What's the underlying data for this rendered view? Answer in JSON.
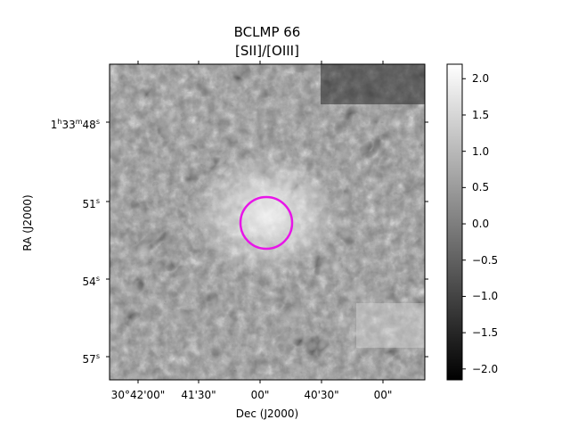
{
  "figure": {
    "title": "BCLMP 66",
    "subtitle": "[SII]/[OIII]",
    "xlabel": "Dec (J2000)",
    "ylabel": "RA (J2000)",
    "x_ticks": [
      "30°42'00\"",
      "41'30\"",
      "00\"",
      "40'30\"",
      "00\""
    ],
    "y_ticks": [
      {
        "text": "1h33m48s",
        "main": "1",
        "sup1": "h",
        "mid1": "33",
        "sup2": "m",
        "mid2": "48",
        "sup3": "s"
      },
      {
        "text": "51s",
        "main": "51",
        "sup": "s"
      },
      {
        "text": "54s",
        "main": "54",
        "sup": "s"
      },
      {
        "text": "57s",
        "main": "57",
        "sup": "s"
      }
    ],
    "colorbar": {
      "ticks": [
        "2.0",
        "1.5",
        "1.0",
        "0.5",
        "0.0",
        "−0.5",
        "−1.0",
        "−1.5",
        "−2.0"
      ],
      "range": [
        -2.15,
        2.2
      ],
      "colormap": "gray"
    },
    "marker": {
      "shape": "circle",
      "color": "#e815e8"
    },
    "colors": {
      "background": "#ffffff",
      "frame": "#000000",
      "marker": "#e815e8"
    }
  }
}
